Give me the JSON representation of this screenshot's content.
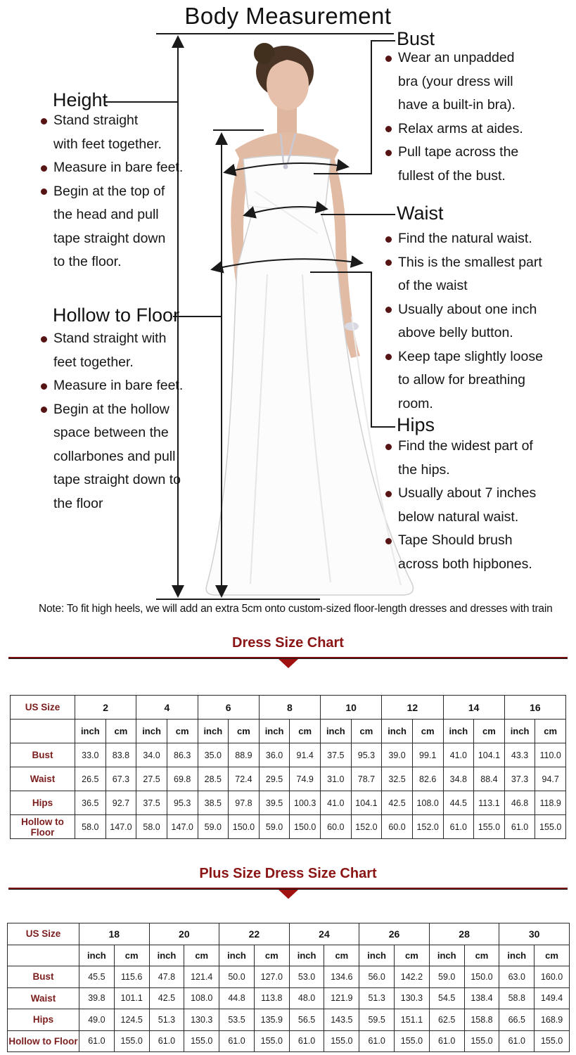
{
  "title": "Body Measurement",
  "note": "Note: To fit high heels, we will add an extra 5cm onto custom-sized floor-length dresses and dresses with train",
  "colors": {
    "accent_red": "#8b1414",
    "bullet_maroon": "#571414",
    "table_label_maroon": "#7b1d1d",
    "line_black": "#1a1a1a"
  },
  "sections": {
    "height": {
      "title": "Height",
      "bullets": [
        [
          "Stand straight",
          "with feet together."
        ],
        [
          "Measure in bare feet."
        ],
        [
          "Begin at the top of",
          "the head and pull",
          "tape straight down",
          "to the floor."
        ]
      ]
    },
    "hollow_to_floor": {
      "title": "Hollow to Floor",
      "bullets": [
        [
          "Stand straight with",
          "feet together."
        ],
        [
          "Measure in bare feet."
        ],
        [
          "Begin at the hollow",
          "space between the",
          "collarbones and pull",
          "tape straight down to",
          "the floor"
        ]
      ]
    },
    "bust": {
      "title": "Bust",
      "bullets": [
        [
          "Wear an unpadded",
          "bra (your dress will",
          "have a built-in bra)."
        ],
        [
          "Relax arms at aides."
        ],
        [
          "Pull tape across the",
          "fullest of the bust."
        ]
      ]
    },
    "waist": {
      "title": "Waist",
      "bullets": [
        [
          "Find the natural waist."
        ],
        [
          "This is the smallest part",
          "of the waist"
        ],
        [
          "Usually about one inch",
          "above belly button."
        ],
        [
          "Keep tape slightly loose",
          "to allow for breathing",
          "room."
        ]
      ]
    },
    "hips": {
      "title": "Hips",
      "bullets": [
        [
          "Find the widest part of",
          "the hips."
        ],
        [
          "Usually about 7 inches",
          "below natural waist."
        ],
        [
          "Tape Should brush",
          "across both hipbones."
        ]
      ]
    }
  },
  "size_charts": [
    {
      "title": "Dress Size Chart",
      "corner_label": "US Size",
      "unit_labels": [
        "inch",
        "cm"
      ],
      "sizes": [
        "2",
        "4",
        "6",
        "8",
        "10",
        "12",
        "14",
        "16"
      ],
      "rows": [
        {
          "label": "Bust",
          "values": [
            [
              "33.0",
              "83.8"
            ],
            [
              "34.0",
              "86.3"
            ],
            [
              "35.0",
              "88.9"
            ],
            [
              "36.0",
              "91.4"
            ],
            [
              "37.5",
              "95.3"
            ],
            [
              "39.0",
              "99.1"
            ],
            [
              "41.0",
              "104.1"
            ],
            [
              "43.3",
              "110.0"
            ]
          ]
        },
        {
          "label": "Waist",
          "values": [
            [
              "26.5",
              "67.3"
            ],
            [
              "27.5",
              "69.8"
            ],
            [
              "28.5",
              "72.4"
            ],
            [
              "29.5",
              "74.9"
            ],
            [
              "31.0",
              "78.7"
            ],
            [
              "32.5",
              "82.6"
            ],
            [
              "34.8",
              "88.4"
            ],
            [
              "37.3",
              "94.7"
            ]
          ]
        },
        {
          "label": "Hips",
          "values": [
            [
              "36.5",
              "92.7"
            ],
            [
              "37.5",
              "95.3"
            ],
            [
              "38.5",
              "97.8"
            ],
            [
              "39.5",
              "100.3"
            ],
            [
              "41.0",
              "104.1"
            ],
            [
              "42.5",
              "108.0"
            ],
            [
              "44.5",
              "113.1"
            ],
            [
              "46.8",
              "118.9"
            ]
          ]
        },
        {
          "label": "Hollow to Floor",
          "values": [
            [
              "58.0",
              "147.0"
            ],
            [
              "58.0",
              "147.0"
            ],
            [
              "59.0",
              "150.0"
            ],
            [
              "59.0",
              "150.0"
            ],
            [
              "60.0",
              "152.0"
            ],
            [
              "60.0",
              "152.0"
            ],
            [
              "61.0",
              "155.0"
            ],
            [
              "61.0",
              "155.0"
            ]
          ]
        }
      ]
    },
    {
      "title": "Plus Size Dress Size Chart",
      "corner_label": "US Size",
      "unit_labels": [
        "inch",
        "cm"
      ],
      "sizes": [
        "18",
        "20",
        "22",
        "24",
        "26",
        "28",
        "30"
      ],
      "rows": [
        {
          "label": "Bust",
          "values": [
            [
              "45.5",
              "115.6"
            ],
            [
              "47.8",
              "121.4"
            ],
            [
              "50.0",
              "127.0"
            ],
            [
              "53.0",
              "134.6"
            ],
            [
              "56.0",
              "142.2"
            ],
            [
              "59.0",
              "150.0"
            ],
            [
              "63.0",
              "160.0"
            ]
          ]
        },
        {
          "label": "Waist",
          "values": [
            [
              "39.8",
              "101.1"
            ],
            [
              "42.5",
              "108.0"
            ],
            [
              "44.8",
              "113.8"
            ],
            [
              "48.0",
              "121.9"
            ],
            [
              "51.3",
              "130.3"
            ],
            [
              "54.5",
              "138.4"
            ],
            [
              "58.8",
              "149.4"
            ]
          ]
        },
        {
          "label": "Hips",
          "values": [
            [
              "49.0",
              "124.5"
            ],
            [
              "51.3",
              "130.3"
            ],
            [
              "53.5",
              "135.9"
            ],
            [
              "56.5",
              "143.5"
            ],
            [
              "59.5",
              "151.1"
            ],
            [
              "62.5",
              "158.8"
            ],
            [
              "66.5",
              "168.9"
            ]
          ]
        },
        {
          "label": "Hollow to Floor",
          "values": [
            [
              "61.0",
              "155.0"
            ],
            [
              "61.0",
              "155.0"
            ],
            [
              "61.0",
              "155.0"
            ],
            [
              "61.0",
              "155.0"
            ],
            [
              "61.0",
              "155.0"
            ],
            [
              "61.0",
              "155.0"
            ],
            [
              "61.0",
              "155.0"
            ]
          ]
        }
      ]
    }
  ]
}
